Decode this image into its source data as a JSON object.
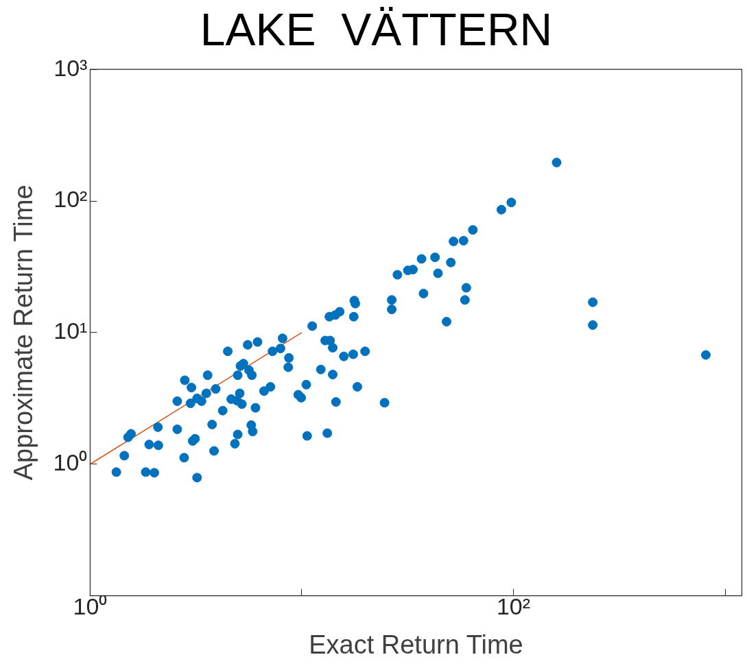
{
  "chart_data": {
    "type": "scatter",
    "title": "LAKE  VÄTTERN",
    "xlabel": "Exact Return Time",
    "ylabel": "Approximate Return Time",
    "log": "xy",
    "grid": false,
    "legend": false,
    "xlim": [
      1,
      1200
    ],
    "ylim": [
      0.1,
      1000
    ],
    "xticks": [
      {
        "value": 1,
        "label": "10⁰"
      },
      {
        "value": 10,
        "label": null
      },
      {
        "value": 100,
        "label": "10²"
      },
      {
        "value": 1000,
        "label": null
      }
    ],
    "yticks": [
      {
        "value": 0.1,
        "label": null
      },
      {
        "value": 1,
        "label": "10⁰"
      },
      {
        "value": 10,
        "label": "10¹"
      },
      {
        "value": 100,
        "label": "10²"
      },
      {
        "value": 1000,
        "label": "10³"
      }
    ],
    "series": [
      {
        "marker": "circle",
        "color": "#0072bd",
        "x": [
          1.33,
          1.45,
          1.51,
          1.56,
          1.83,
          2.01,
          1.9,
          2.1,
          2.09,
          2.58,
          2.58,
          2.8,
          2.78,
          3.01,
          2.98,
          3.05,
          3.13,
          3.2,
          3.2,
          3.36,
          3.54,
          3.59,
          3.77,
          3.85,
          3.92,
          4.23,
          4.47,
          4.64,
          4.83,
          4.98,
          4.98,
          4.94,
          5.09,
          5.13,
          5.3,
          5.21,
          5.55,
          5.63,
          5.81,
          5.77,
          5.86,
          6.04,
          6.18,
          6.63,
          7.11,
          7.27,
          7.93,
          8.11,
          8.69,
          8.63,
          9.62,
          9.93,
          10.5,
          10.6,
          11.2,
          12.3,
          12.9,
          13.2,
          13.6,
          13.5,
          14.0,
          14.0,
          14.4,
          14.5,
          15.1,
          15.8,
          17.5,
          17.6,
          17.7,
          17.9,
          18.3,
          19.9,
          24.6,
          26.6,
          26.6,
          28.3,
          31.7,
          33.5,
          36.8,
          37.6,
          42.6,
          44.0,
          48.3,
          50.6,
          52.1,
          58.1,
          59.0,
          59.9,
          64.3,
          87.7,
          97.7,
          160,
          237,
          237,
          811
        ],
        "values": [
          0.87,
          1.16,
          1.6,
          1.7,
          0.87,
          0.86,
          1.41,
          1.39,
          1.91,
          1.84,
          3.01,
          4.34,
          1.12,
          3.82,
          2.9,
          1.5,
          1.56,
          0.79,
          3.16,
          3.01,
          3.45,
          4.74,
          2.0,
          1.26,
          3.73,
          2.55,
          7.2,
          3.12,
          1.43,
          1.68,
          4.74,
          3.04,
          3.45,
          5.58,
          5.81,
          2.86,
          8.07,
          5.18,
          4.74,
          1.98,
          1.77,
          2.68,
          8.48,
          3.59,
          3.87,
          7.2,
          7.57,
          9.04,
          6.42,
          5.45,
          3.37,
          3.2,
          4.02,
          1.64,
          11.2,
          5.24,
          8.7,
          1.72,
          8.7,
          13.2,
          7.67,
          4.8,
          13.6,
          2.97,
          14.4,
          6.59,
          6.84,
          13.2,
          17.5,
          16.6,
          3.87,
          7.2,
          2.93,
          17.7,
          15.0,
          27.5,
          29.7,
          30.1,
          36.3,
          19.8,
          37.3,
          28.2,
          12.1,
          34.1,
          49.3,
          49.9,
          17.7,
          21.9,
          60.3,
          85.9,
          97.5,
          196,
          17.0,
          11.4,
          6.76
        ]
      },
      {
        "type": "line",
        "marker": "none",
        "color": "#d95319",
        "x": [
          1,
          10
        ],
        "values": [
          1,
          10
        ]
      }
    ]
  }
}
